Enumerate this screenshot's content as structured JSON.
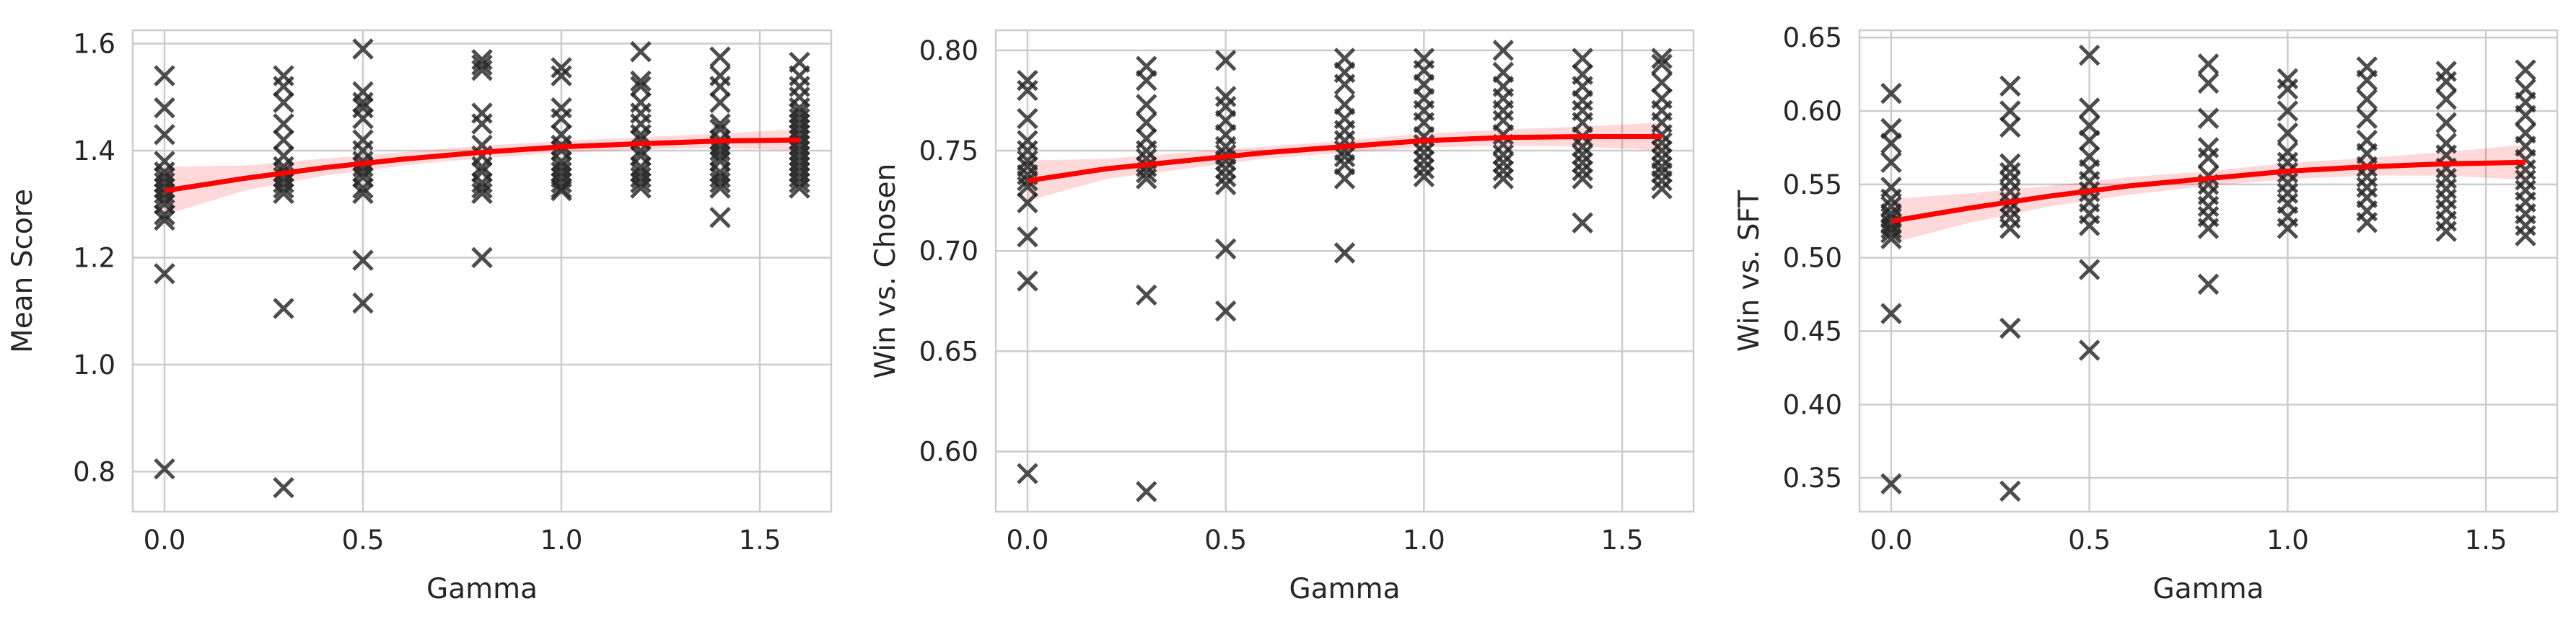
{
  "chart_data": [
    {
      "type": "scatter",
      "xlabel": "Gamma",
      "ylabel": "Mean Score",
      "xlim": [
        -0.08,
        1.68
      ],
      "ylim": [
        0.725,
        1.625
      ],
      "xticks": [
        0.0,
        0.5,
        1.0,
        1.5
      ],
      "xtick_labels": [
        "0.0",
        "0.5",
        "1.0",
        "1.5"
      ],
      "yticks": [
        0.8,
        1.0,
        1.2,
        1.4,
        1.6
      ],
      "ytick_labels": [
        "0.8",
        "1.0",
        "1.2",
        "1.4",
        "1.6"
      ],
      "grid": true,
      "marker": "x",
      "marker_color": "#262626",
      "fit_color": "#ff0000",
      "points": [
        {
          "x": 0.0,
          "y": [
            1.54,
            1.48,
            1.43,
            1.38,
            1.36,
            1.35,
            1.34,
            1.33,
            1.32,
            1.31,
            1.3,
            1.28,
            1.27,
            1.17,
            0.805
          ]
        },
        {
          "x": 0.3,
          "y": [
            1.54,
            1.52,
            1.49,
            1.45,
            1.42,
            1.39,
            1.37,
            1.36,
            1.35,
            1.34,
            1.33,
            1.32,
            1.105,
            0.77
          ]
        },
        {
          "x": 0.5,
          "y": [
            1.59,
            1.51,
            1.49,
            1.48,
            1.46,
            1.42,
            1.4,
            1.38,
            1.37,
            1.36,
            1.35,
            1.33,
            1.32,
            1.195,
            1.115
          ]
        },
        {
          "x": 0.8,
          "y": [
            1.57,
            1.56,
            1.55,
            1.47,
            1.45,
            1.41,
            1.39,
            1.37,
            1.36,
            1.34,
            1.33,
            1.32,
            1.2
          ]
        },
        {
          "x": 1.0,
          "y": [
            1.555,
            1.54,
            1.48,
            1.46,
            1.43,
            1.41,
            1.4,
            1.38,
            1.37,
            1.36,
            1.35,
            1.34,
            1.33,
            1.325
          ]
        },
        {
          "x": 1.2,
          "y": [
            1.585,
            1.53,
            1.52,
            1.49,
            1.47,
            1.45,
            1.43,
            1.42,
            1.4,
            1.39,
            1.37,
            1.36,
            1.35,
            1.34,
            1.33
          ]
        },
        {
          "x": 1.4,
          "y": [
            1.575,
            1.54,
            1.52,
            1.49,
            1.45,
            1.44,
            1.42,
            1.41,
            1.4,
            1.39,
            1.38,
            1.36,
            1.35,
            1.34,
            1.33,
            1.275
          ]
        },
        {
          "x": 1.6,
          "y": [
            1.565,
            1.54,
            1.52,
            1.5,
            1.48,
            1.47,
            1.46,
            1.45,
            1.44,
            1.43,
            1.42,
            1.41,
            1.4,
            1.39,
            1.38,
            1.37,
            1.36,
            1.35,
            1.34,
            1.33
          ]
        }
      ],
      "fit": {
        "x": [
          0.0,
          0.2,
          0.4,
          0.6,
          0.8,
          1.0,
          1.2,
          1.4,
          1.6
        ],
        "y": [
          1.325,
          1.348,
          1.368,
          1.384,
          1.397,
          1.407,
          1.413,
          1.418,
          1.42
        ],
        "ci_lower": [
          1.28,
          1.325,
          1.353,
          1.372,
          1.386,
          1.396,
          1.402,
          1.405,
          1.4
        ],
        "ci_upper": [
          1.37,
          1.372,
          1.385,
          1.397,
          1.409,
          1.418,
          1.425,
          1.432,
          1.44
        ]
      }
    },
    {
      "type": "scatter",
      "xlabel": "Gamma",
      "ylabel": "Win vs. Chosen",
      "xlim": [
        -0.08,
        1.68
      ],
      "ylim": [
        0.57,
        0.81
      ],
      "xticks": [
        0.0,
        0.5,
        1.0,
        1.5
      ],
      "xtick_labels": [
        "0.0",
        "0.5",
        "1.0",
        "1.5"
      ],
      "yticks": [
        0.6,
        0.65,
        0.7,
        0.75,
        0.8
      ],
      "ytick_labels": [
        "0.60",
        "0.65",
        "0.70",
        "0.75",
        "0.80"
      ],
      "grid": true,
      "marker": "x",
      "marker_color": "#262626",
      "fit_color": "#ff0000",
      "points": [
        {
          "x": 0.0,
          "y": [
            0.785,
            0.78,
            0.766,
            0.755,
            0.75,
            0.745,
            0.742,
            0.738,
            0.735,
            0.732,
            0.724,
            0.707,
            0.685,
            0.589
          ]
        },
        {
          "x": 0.3,
          "y": [
            0.792,
            0.785,
            0.773,
            0.764,
            0.756,
            0.75,
            0.746,
            0.742,
            0.739,
            0.736,
            0.678,
            0.58
          ]
        },
        {
          "x": 0.5,
          "y": [
            0.795,
            0.777,
            0.772,
            0.765,
            0.758,
            0.752,
            0.748,
            0.745,
            0.741,
            0.737,
            0.733,
            0.701,
            0.67
          ]
        },
        {
          "x": 0.8,
          "y": [
            0.796,
            0.789,
            0.783,
            0.773,
            0.766,
            0.76,
            0.755,
            0.75,
            0.747,
            0.743,
            0.736,
            0.699
          ]
        },
        {
          "x": 1.0,
          "y": [
            0.796,
            0.79,
            0.783,
            0.776,
            0.77,
            0.764,
            0.757,
            0.753,
            0.749,
            0.745,
            0.741,
            0.737
          ]
        },
        {
          "x": 1.2,
          "y": [
            0.8,
            0.789,
            0.782,
            0.776,
            0.77,
            0.765,
            0.758,
            0.753,
            0.748,
            0.744,
            0.74,
            0.736
          ]
        },
        {
          "x": 1.4,
          "y": [
            0.796,
            0.788,
            0.782,
            0.775,
            0.77,
            0.764,
            0.757,
            0.752,
            0.748,
            0.744,
            0.74,
            0.736,
            0.714
          ]
        },
        {
          "x": 1.6,
          "y": [
            0.796,
            0.793,
            0.784,
            0.776,
            0.77,
            0.764,
            0.758,
            0.754,
            0.75,
            0.746,
            0.742,
            0.739,
            0.735,
            0.731
          ]
        }
      ],
      "fit": {
        "x": [
          0.0,
          0.2,
          0.4,
          0.6,
          0.8,
          1.0,
          1.2,
          1.4,
          1.6
        ],
        "y": [
          0.735,
          0.741,
          0.745,
          0.749,
          0.752,
          0.755,
          0.7565,
          0.757,
          0.757
        ],
        "ci_lower": [
          0.725,
          0.736,
          0.741,
          0.746,
          0.749,
          0.7515,
          0.7525,
          0.752,
          0.75
        ],
        "ci_upper": [
          0.745,
          0.746,
          0.749,
          0.752,
          0.755,
          0.7585,
          0.7605,
          0.762,
          0.764
        ]
      }
    },
    {
      "type": "scatter",
      "xlabel": "Gamma",
      "ylabel": "Win vs. SFT",
      "xlim": [
        -0.08,
        1.68
      ],
      "ylim": [
        0.327,
        0.655
      ],
      "xticks": [
        0.0,
        0.5,
        1.0,
        1.5
      ],
      "xtick_labels": [
        "0.0",
        "0.5",
        "1.0",
        "1.5"
      ],
      "yticks": [
        0.35,
        0.4,
        0.45,
        0.5,
        0.55,
        0.6,
        0.65
      ],
      "ytick_labels": [
        "0.35",
        "0.40",
        "0.45",
        "0.50",
        "0.55",
        "0.60",
        "0.65"
      ],
      "grid": true,
      "marker": "x",
      "marker_color": "#262626",
      "fit_color": "#ff0000",
      "points": [
        {
          "x": 0.0,
          "y": [
            0.612,
            0.588,
            0.578,
            0.565,
            0.548,
            0.54,
            0.535,
            0.53,
            0.527,
            0.523,
            0.52,
            0.517,
            0.513,
            0.462,
            0.346
          ]
        },
        {
          "x": 0.3,
          "y": [
            0.617,
            0.6,
            0.589,
            0.564,
            0.558,
            0.552,
            0.545,
            0.538,
            0.533,
            0.527,
            0.52,
            0.452,
            0.341
          ]
        },
        {
          "x": 0.5,
          "y": [
            0.638,
            0.602,
            0.59,
            0.58,
            0.569,
            0.56,
            0.552,
            0.545,
            0.538,
            0.53,
            0.522,
            0.492,
            0.437
          ]
        },
        {
          "x": 0.8,
          "y": [
            0.632,
            0.619,
            0.595,
            0.575,
            0.568,
            0.556,
            0.55,
            0.543,
            0.535,
            0.528,
            0.52,
            0.482
          ]
        },
        {
          "x": 1.0,
          "y": [
            0.622,
            0.615,
            0.6,
            0.585,
            0.572,
            0.565,
            0.558,
            0.551,
            0.544,
            0.537,
            0.528,
            0.52
          ]
        },
        {
          "x": 1.2,
          "y": [
            0.63,
            0.621,
            0.608,
            0.595,
            0.58,
            0.571,
            0.562,
            0.555,
            0.548,
            0.541,
            0.532,
            0.524
          ]
        },
        {
          "x": 1.4,
          "y": [
            0.627,
            0.62,
            0.608,
            0.592,
            0.578,
            0.57,
            0.561,
            0.554,
            0.547,
            0.54,
            0.533,
            0.525,
            0.518
          ]
        },
        {
          "x": 1.6,
          "y": [
            0.628,
            0.615,
            0.606,
            0.597,
            0.585,
            0.576,
            0.567,
            0.56,
            0.553,
            0.546,
            0.538,
            0.53,
            0.522,
            0.515
          ]
        }
      ],
      "fit": {
        "x": [
          0.0,
          0.2,
          0.4,
          0.6,
          0.8,
          1.0,
          1.2,
          1.4,
          1.6
        ],
        "y": [
          0.525,
          0.534,
          0.542,
          0.549,
          0.554,
          0.559,
          0.562,
          0.564,
          0.565
        ],
        "ci_lower": [
          0.51,
          0.524,
          0.535,
          0.543,
          0.549,
          0.5535,
          0.556,
          0.556,
          0.553
        ],
        "ci_upper": [
          0.54,
          0.544,
          0.549,
          0.555,
          0.559,
          0.5645,
          0.568,
          0.572,
          0.577
        ]
      }
    }
  ]
}
